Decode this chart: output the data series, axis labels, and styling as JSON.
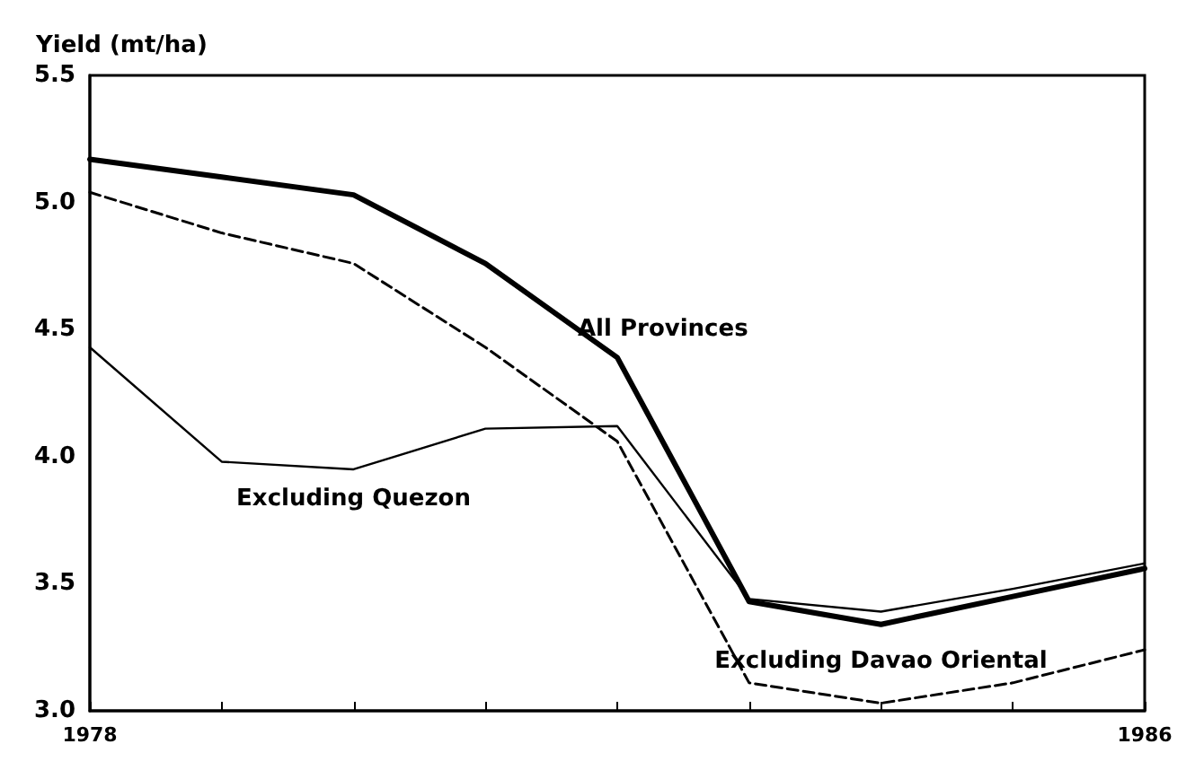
{
  "chart_data": {
    "type": "line",
    "ylabel": "Yield (mt/ha)",
    "x": [
      1978,
      1979,
      1980,
      1981,
      1982,
      1983,
      1984,
      1985,
      1986
    ],
    "xlim": [
      1978,
      1986
    ],
    "xticks": [
      1978,
      {
        "value": 1979,
        "label": null
      },
      {
        "value": 1980,
        "label": null
      },
      {
        "value": 1981,
        "label": null
      },
      {
        "value": 1982,
        "label": null
      },
      {
        "value": 1983,
        "label": null
      },
      {
        "value": 1984,
        "label": null
      },
      {
        "value": 1985,
        "label": null
      },
      1986
    ],
    "ylim": [
      3.0,
      5.5
    ],
    "yticks": [
      {
        "value": 3,
        "label": "3.0"
      },
      {
        "value": 3.5,
        "label": "3.5"
      },
      {
        "value": 4,
        "label": "4.0"
      },
      {
        "value": 4.5,
        "label": "4.5"
      },
      {
        "value": 5,
        "label": "5.0"
      },
      {
        "value": 5.5,
        "label": "5.5"
      }
    ],
    "grid": false,
    "marker": "none",
    "series": [
      {
        "color": "#000000",
        "line_style": "solid",
        "values": [
          5.17,
          5.1,
          5.03,
          4.76,
          4.39,
          3.43,
          3.34,
          3.45,
          3.56
        ]
      },
      {
        "color": "#000000",
        "line_style": "solid",
        "values": [
          4.43,
          3.98,
          3.95,
          4.11,
          4.12,
          3.44,
          3.39,
          3.48,
          3.58
        ]
      },
      {
        "color": "#000000",
        "line_style": "dashed",
        "values": [
          5.04,
          4.88,
          4.76,
          4.43,
          4.06,
          3.11,
          3.03,
          3.11,
          3.24
        ]
      }
    ],
    "annotations": [
      {
        "text": "All Provinces",
        "x": 1982,
        "y": 4.39
      },
      {
        "text": "Excluding Quezon",
        "x": 1980,
        "y": 3.95
      },
      {
        "text": "Excluding Davao Oriental",
        "x": 1984,
        "y": 3.03
      }
    ]
  }
}
